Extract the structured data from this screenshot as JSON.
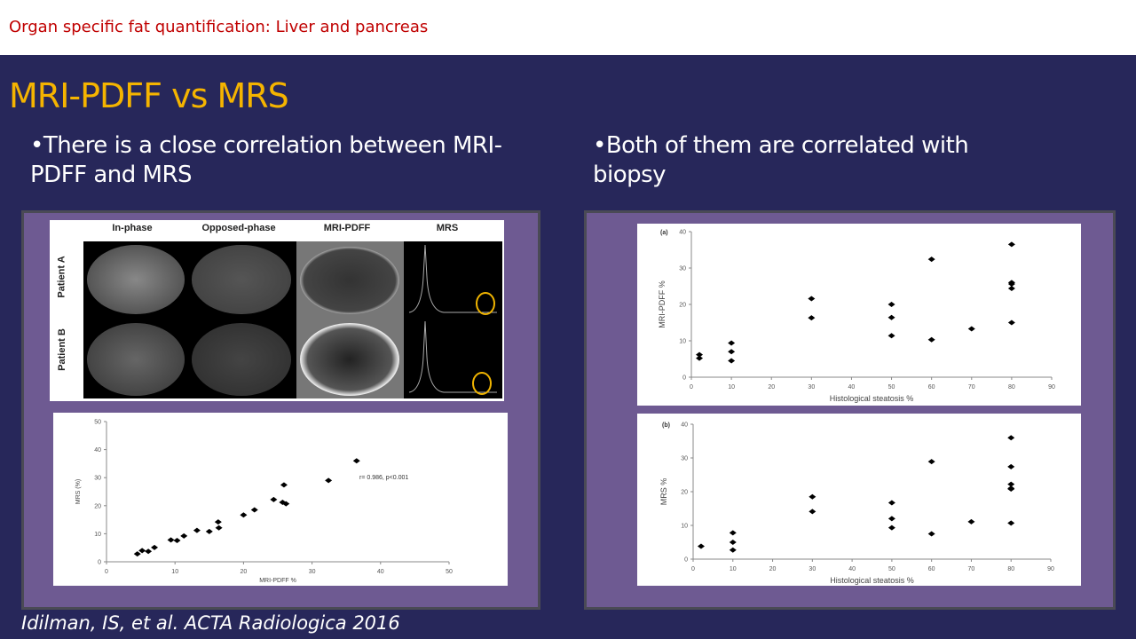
{
  "header": {
    "subtitle": "Organ specific fat quantification:  Liver and pancreas"
  },
  "slide": {
    "title": "MRI-PDFF vs MRS",
    "bullet_left": "•There is a close correlation between MRI-PDFF and MRS",
    "bullet_right": "•Both of them are correlated with biopsy",
    "citation": "Idilman, IS, et al. ACTA Radiologica 2016"
  },
  "figure": {
    "columns": [
      "In-phase",
      "Opposed-phase",
      "MRI-PDFF",
      "MRS"
    ],
    "rows": [
      "Patient A",
      "Patient B"
    ],
    "colors": {
      "highlight": "#f0b400"
    }
  },
  "chart_data": [
    {
      "type": "scatter",
      "panel_label": "",
      "xlabel": "MRI-PDFF %",
      "ylabel": "MRS (%)",
      "xlim": [
        0,
        50
      ],
      "ylim": [
        0,
        50
      ],
      "xticks": [
        0,
        10,
        20,
        30,
        40,
        50
      ],
      "yticks": [
        0,
        10,
        20,
        30,
        40,
        50
      ],
      "annotation": "r= 0.986, p<0.001",
      "x": [
        4.5,
        5.2,
        6.1,
        7,
        9.4,
        10.3,
        11.3,
        13.2,
        15,
        16.3,
        16.4,
        20,
        21.6,
        24.4,
        25.7,
        26.2,
        25.9,
        32.4,
        36.5
      ],
      "y": [
        2.8,
        4,
        3.7,
        5.1,
        7.8,
        7.6,
        9.2,
        11.2,
        10.8,
        14.2,
        12.1,
        16.7,
        18.5,
        22.2,
        21.2,
        20.7,
        27.4,
        29,
        36
      ]
    },
    {
      "type": "scatter",
      "panel_label": "(a)",
      "xlabel": "Histological steatosis %",
      "ylabel": "MRI-PDFF %",
      "xlim": [
        0,
        90
      ],
      "ylim": [
        0,
        40
      ],
      "xticks": [
        0,
        10,
        20,
        30,
        40,
        50,
        60,
        70,
        80,
        90
      ],
      "yticks": [
        0,
        10,
        20,
        30,
        40
      ],
      "annotation": "",
      "x": [
        2,
        2,
        10,
        10,
        10,
        30,
        30,
        50,
        50,
        50,
        60,
        60,
        70,
        80,
        80,
        80,
        80,
        80
      ],
      "y": [
        6.2,
        5.2,
        9.4,
        7,
        4.5,
        21.6,
        16.3,
        20,
        16.4,
        11.4,
        32.4,
        10.3,
        13.3,
        36.5,
        26,
        25.6,
        24.4,
        15
      ]
    },
    {
      "type": "scatter",
      "panel_label": "(b)",
      "xlabel": "Histological steatosis %",
      "ylabel": "MRS %",
      "xlim": [
        0,
        90
      ],
      "ylim": [
        0,
        40
      ],
      "xticks": [
        0,
        10,
        20,
        30,
        40,
        50,
        60,
        70,
        80,
        90
      ],
      "yticks": [
        0,
        10,
        20,
        30,
        40
      ],
      "annotation": "",
      "x": [
        2,
        10,
        10,
        10,
        30,
        30,
        50,
        50,
        50,
        60,
        60,
        70,
        80,
        80,
        80,
        80,
        80,
        80
      ],
      "y": [
        3.8,
        7.8,
        5,
        2.7,
        18.5,
        14.1,
        16.7,
        12,
        9.3,
        28.9,
        7.5,
        11.1,
        36,
        27.4,
        22.2,
        21,
        20.8,
        10.7
      ]
    }
  ]
}
